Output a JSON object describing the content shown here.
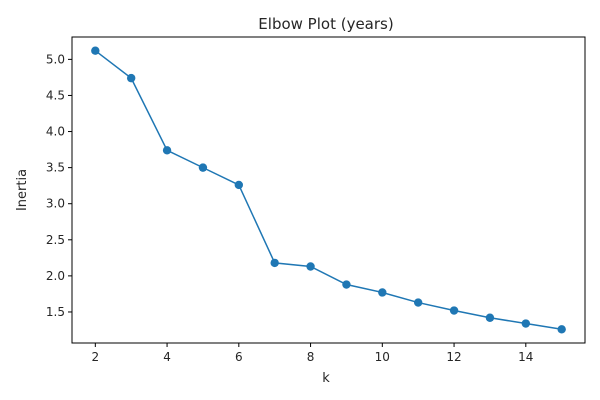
{
  "chart_data": {
    "type": "line",
    "title": "Elbow Plot (years)",
    "xlabel": "k",
    "ylabel": "Inertia",
    "x": [
      2,
      3,
      4,
      5,
      6,
      7,
      8,
      9,
      10,
      11,
      12,
      13,
      14,
      15
    ],
    "series": [
      {
        "name": "Inertia",
        "values": [
          5.12,
          4.74,
          3.74,
          3.5,
          3.26,
          2.18,
          2.13,
          1.88,
          1.77,
          1.63,
          1.52,
          1.42,
          1.34,
          1.26
        ]
      }
    ],
    "xlim": [
      1.35,
      15.65
    ],
    "ylim": [
      1.07,
      5.31
    ],
    "xticks": [
      2,
      4,
      6,
      8,
      10,
      12,
      14
    ],
    "yticks": [
      1.5,
      2.0,
      2.5,
      3.0,
      3.5,
      4.0,
      4.5,
      5.0
    ],
    "xtick_labels": [
      "2",
      "4",
      "6",
      "8",
      "10",
      "12",
      "14"
    ],
    "ytick_labels": [
      "1.5",
      "2.0",
      "2.5",
      "3.0",
      "3.5",
      "4.0",
      "4.5",
      "5.0"
    ],
    "grid": false,
    "line_color": "#1f77b4"
  }
}
